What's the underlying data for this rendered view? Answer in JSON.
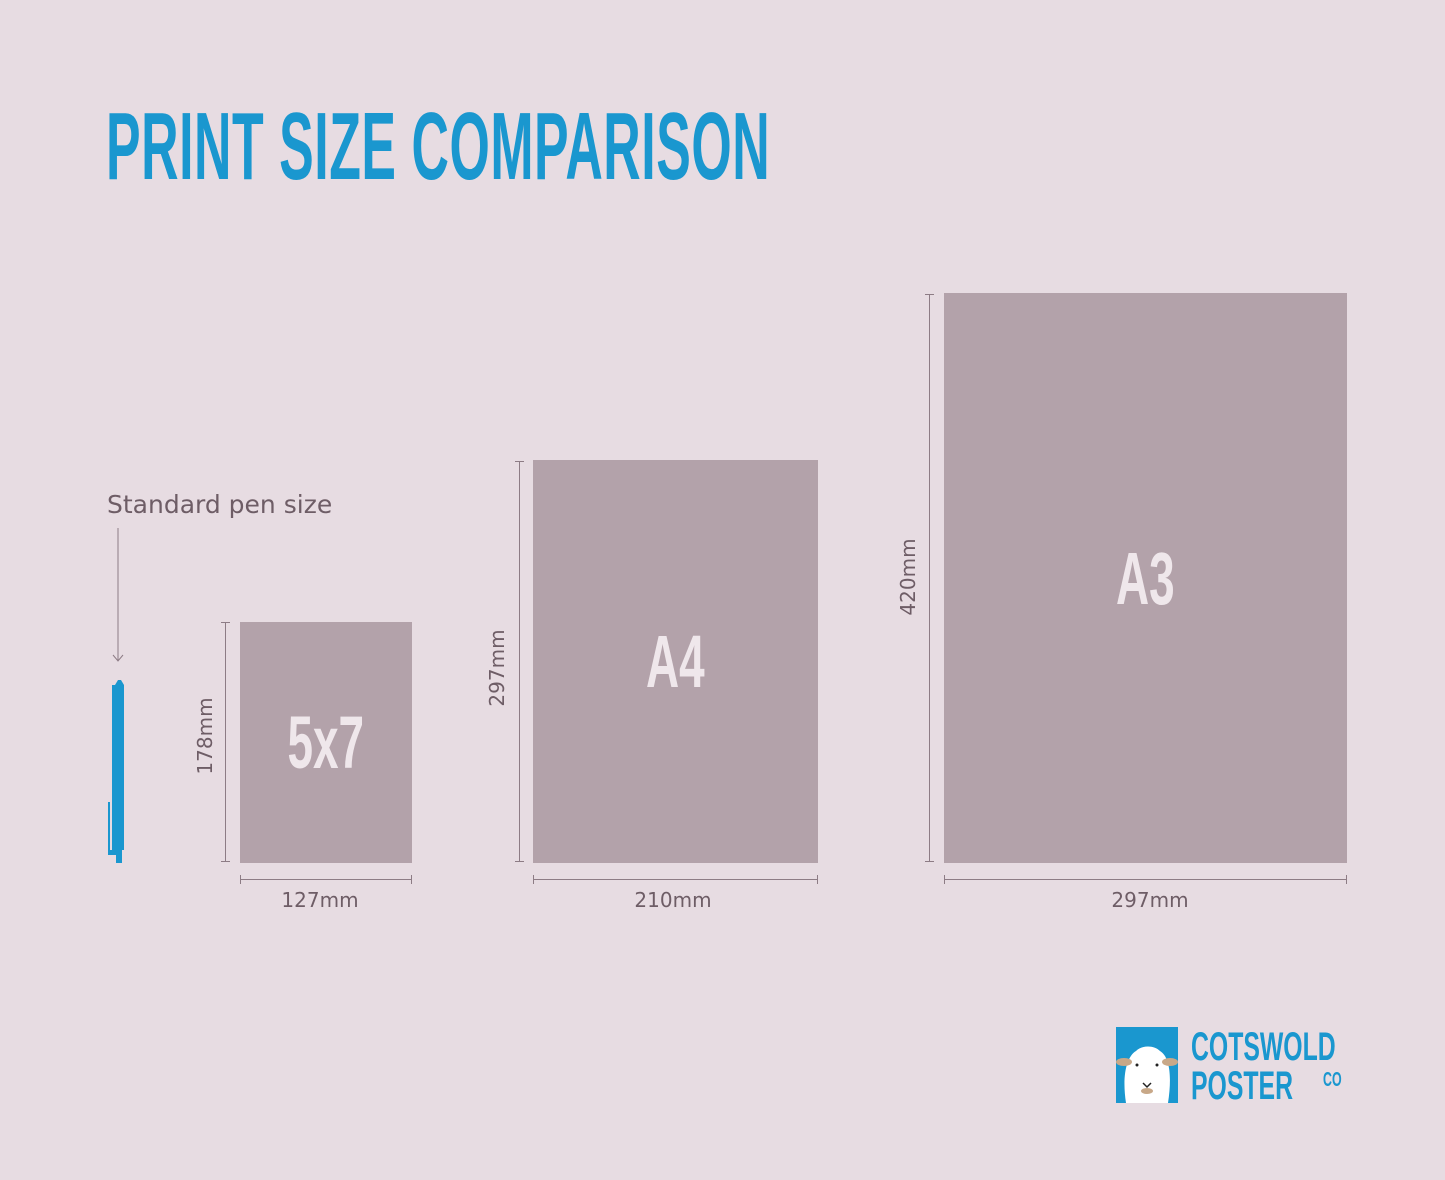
{
  "title": "PRINT SIZE COMPARISON",
  "pen": {
    "label": "Standard pen size",
    "color": "#1a97cf"
  },
  "sizes": [
    {
      "name": "5x7",
      "width": "127mm",
      "height": "178mm"
    },
    {
      "name": "A4",
      "width": "210mm",
      "height": "297mm"
    },
    {
      "name": "A3",
      "width": "297mm",
      "height": "420mm"
    }
  ],
  "logo": {
    "line1": "COTSWOLD",
    "line2": "POSTER",
    "suffix": "CO"
  },
  "colors": {
    "background": "#e7dce2",
    "sheet": "#b3a2aa",
    "accent": "#1a97cf",
    "label": "#6e5d66"
  }
}
